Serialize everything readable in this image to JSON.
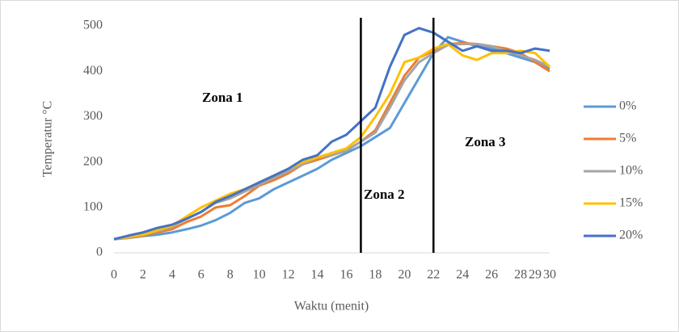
{
  "chart_data": {
    "type": "line",
    "y_label": "Temperatur  °C",
    "x_label": "Waktu (menit)",
    "x": [
      0,
      1,
      2,
      3,
      4,
      5,
      6,
      7,
      8,
      9,
      10,
      11,
      12,
      13,
      14,
      15,
      16,
      17,
      18,
      19,
      20,
      21,
      22,
      23,
      24,
      25,
      26,
      27,
      28,
      29,
      30
    ],
    "xlim": [
      0,
      30
    ],
    "xticks": [
      0,
      2,
      4,
      6,
      8,
      10,
      12,
      14,
      16,
      18,
      20,
      22,
      24,
      26,
      28,
      29,
      30
    ],
    "ylim": [
      0,
      500
    ],
    "yticks": [
      0,
      100,
      200,
      300,
      400,
      500
    ],
    "vlines": [
      17,
      22
    ],
    "annotations": [
      "Zona  1",
      "Zona  2",
      "Zona  3"
    ],
    "series": [
      {
        "name": "0%",
        "color": "#5b9bd5",
        "values": [
          30,
          33,
          37,
          40,
          45,
          52,
          60,
          72,
          88,
          110,
          120,
          140,
          155,
          170,
          185,
          205,
          220,
          235,
          255,
          275,
          330,
          385,
          440,
          475,
          465,
          455,
          450,
          440,
          430,
          420,
          405
        ]
      },
      {
        "name": "5%",
        "color": "#ed7d31",
        "values": [
          30,
          33,
          38,
          45,
          52,
          68,
          80,
          100,
          105,
          125,
          148,
          160,
          175,
          195,
          205,
          215,
          225,
          245,
          270,
          330,
          390,
          430,
          445,
          460,
          462,
          460,
          455,
          450,
          440,
          420,
          400
        ]
      },
      {
        "name": "10%",
        "color": "#a5a5a5",
        "values": [
          30,
          34,
          40,
          48,
          58,
          75,
          90,
          110,
          120,
          135,
          150,
          165,
          180,
          195,
          210,
          215,
          225,
          245,
          265,
          320,
          380,
          420,
          440,
          458,
          460,
          460,
          455,
          445,
          435,
          425,
          410
        ]
      },
      {
        "name": "15%",
        "color": "#ffc000",
        "values": [
          30,
          35,
          40,
          50,
          60,
          80,
          100,
          115,
          130,
          140,
          155,
          170,
          185,
          200,
          210,
          220,
          230,
          255,
          300,
          350,
          420,
          430,
          450,
          460,
          435,
          425,
          440,
          440,
          445,
          440,
          410
        ]
      },
      {
        "name": "20%",
        "color": "#4472c4",
        "values": [
          30,
          38,
          45,
          55,
          62,
          75,
          90,
          112,
          125,
          140,
          155,
          170,
          185,
          205,
          215,
          245,
          260,
          290,
          320,
          410,
          480,
          495,
          485,
          465,
          445,
          455,
          445,
          445,
          440,
          450,
          445
        ]
      }
    ]
  }
}
